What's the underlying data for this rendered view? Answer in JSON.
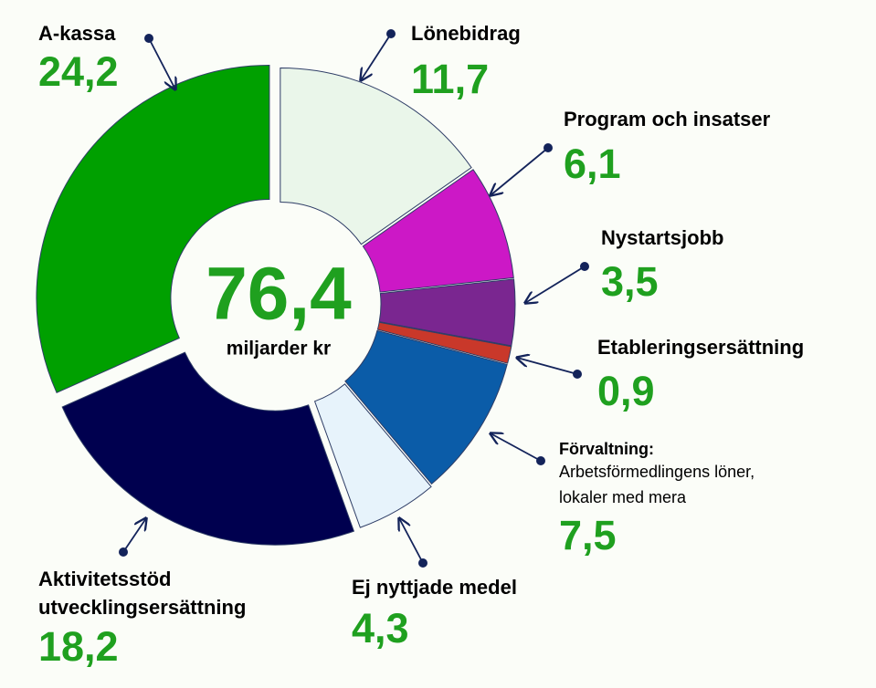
{
  "chart_data": {
    "type": "donut",
    "center_label": "76,4",
    "center_sublabel": "miljarder kr",
    "categories": [
      "Lönebidrag",
      "Program och insatser",
      "Nystartsjobb",
      "Etableringsersättning",
      "Förvaltning:",
      "Ej nyttjade medel",
      "Aktivitetsstöd\nutvecklingsersättning",
      "A-kassa"
    ],
    "values": [
      11.7,
      6.1,
      3.5,
      0.9,
      7.5,
      4.3,
      18.2,
      24.2
    ],
    "value_labels": [
      "11,7",
      "6,1",
      "3,5",
      "0,9",
      "7,5",
      "4,3",
      "18,2",
      "24,2"
    ],
    "colors": [
      "#eaf6ea",
      "#cc18c6",
      "#7a2690",
      "#c9382a",
      "#0b5ca8",
      "#e7f3fb",
      "#00004f",
      "#00a000"
    ],
    "note": "Arbetsförmedlingens löner,\nlokaler med mera"
  }
}
